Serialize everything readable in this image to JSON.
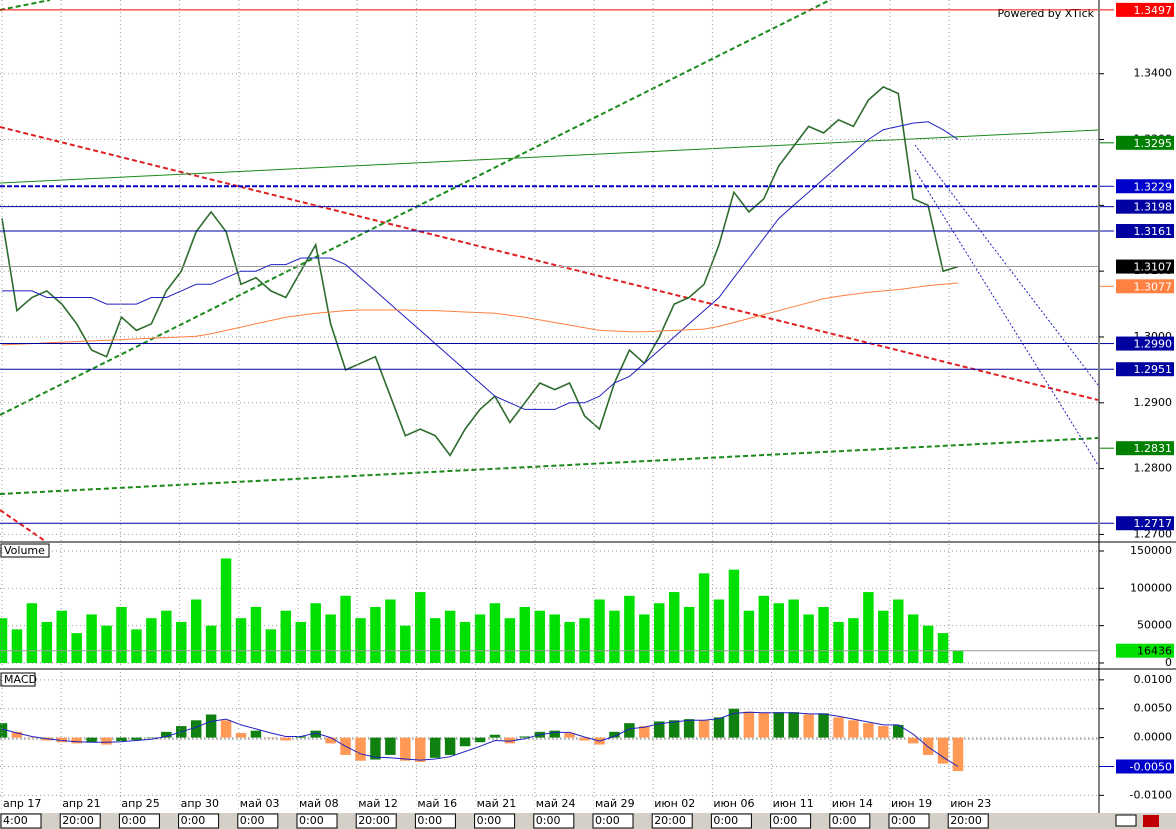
{
  "watermark": "Powered by XTick",
  "time_axis": {
    "dates": [
      "апр 17",
      "апр 21",
      "апр 25",
      "апр 30",
      "май 03",
      "май 08",
      "май 12",
      "май 16",
      "май 21",
      "май 24",
      "май 29",
      "июн 02",
      "июн 06",
      "июн 11",
      "июн 14",
      "июн 19",
      "июн 23"
    ],
    "times": [
      "4:00",
      "20:00",
      "0:00",
      "0:00",
      "0:00",
      "0:00",
      "20:00",
      "0:00",
      "0:00",
      "0:00",
      "0:00",
      "20:00",
      "0:00",
      "0:00",
      "0:00",
      "0:00",
      "20:00"
    ]
  },
  "chart_data": [
    {
      "type": "line",
      "ylim": [
        1.269,
        1.3512
      ],
      "yticks": [
        {
          "value": 1.27,
          "label": "1.2700"
        },
        {
          "value": 1.28,
          "label": "1.2800"
        },
        {
          "value": 1.29,
          "label": "1.2900"
        },
        {
          "value": 1.3,
          "label": "1.3000"
        },
        {
          "value": 1.31,
          "label": "1.3100"
        },
        {
          "value": 1.32,
          "label": "1.3200"
        },
        {
          "value": 1.33,
          "label": "1.3300"
        },
        {
          "value": 1.34,
          "label": "1.3400"
        }
      ],
      "grid": true,
      "series": [
        {
          "style": "line",
          "color": "#2e6b2e",
          "last_badge": true,
          "badge_color": "#000000",
          "values": [
            1.318,
            1.304,
            1.306,
            1.307,
            1.305,
            1.302,
            1.298,
            1.297,
            1.303,
            1.301,
            1.302,
            1.307,
            1.31,
            1.316,
            1.319,
            1.316,
            1.308,
            1.309,
            1.307,
            1.306,
            1.31,
            1.314,
            1.302,
            1.295,
            1.296,
            1.297,
            1.291,
            1.285,
            1.286,
            1.285,
            1.282,
            1.286,
            1.289,
            1.291,
            1.287,
            1.29,
            1.293,
            1.292,
            1.293,
            1.288,
            1.286,
            1.293,
            1.298,
            1.296,
            1.3,
            1.305,
            1.306,
            1.308,
            1.314,
            1.322,
            1.319,
            1.321,
            1.326,
            1.329,
            1.332,
            1.331,
            1.333,
            1.332,
            1.336,
            1.338,
            1.337,
            1.321,
            1.32,
            1.31,
            1.3107
          ]
        },
        {
          "style": "line",
          "color": "#2020c0",
          "values": [
            1.307,
            1.307,
            1.307,
            1.306,
            1.306,
            1.306,
            1.306,
            1.305,
            1.305,
            1.305,
            1.306,
            1.306,
            1.307,
            1.308,
            1.308,
            1.309,
            1.31,
            1.31,
            1.311,
            1.311,
            1.312,
            1.312,
            1.312,
            1.311,
            1.309,
            1.307,
            1.305,
            1.303,
            1.301,
            1.299,
            1.297,
            1.295,
            1.293,
            1.291,
            1.29,
            1.289,
            1.289,
            1.289,
            1.29,
            1.29,
            1.291,
            1.293,
            1.294,
            1.296,
            1.298,
            1.3,
            1.302,
            1.304,
            1.306,
            1.309,
            1.312,
            1.315,
            1.318,
            1.32,
            1.322,
            1.324,
            1.326,
            1.328,
            1.33,
            1.3315,
            1.332,
            1.3325,
            1.3327,
            1.3315,
            1.33
          ]
        },
        {
          "style": "line",
          "color": "#ff8040",
          "values": [
            1.2988,
            1.2989,
            1.299,
            1.2991,
            1.2992,
            1.2993,
            1.2994,
            1.2995,
            1.2996,
            1.2997,
            1.2998,
            1.2999,
            1.3,
            1.3001,
            1.3005,
            1.301,
            1.3015,
            1.302,
            1.3025,
            1.303,
            1.3033,
            1.3036,
            1.3038,
            1.304,
            1.3041,
            1.3041,
            1.3041,
            1.3041,
            1.304,
            1.304,
            1.3039,
            1.3038,
            1.3037,
            1.3036,
            1.3033,
            1.303,
            1.3026,
            1.3022,
            1.3018,
            1.3014,
            1.301,
            1.3009,
            1.3008,
            1.3008,
            1.3009,
            1.301,
            1.3011,
            1.3012,
            1.3016,
            1.3022,
            1.3028,
            1.3034,
            1.304,
            1.3046,
            1.3052,
            1.3058,
            1.3062,
            1.3065,
            1.3068,
            1.307,
            1.3072,
            1.3075,
            1.3078,
            1.308,
            1.3082
          ]
        }
      ],
      "levels": [
        {
          "value": 1.3497,
          "color": "#ff0000",
          "line_style": "solid"
        },
        {
          "value": 1.3295,
          "color": "#008000",
          "line_style": "none"
        },
        {
          "value": 1.3229,
          "color": "#0000cc",
          "line_style": "dashed"
        },
        {
          "value": 1.3198,
          "color": "#0000a0",
          "line_style": "solid"
        },
        {
          "value": 1.3161,
          "color": "#0000a0",
          "line_style": "solid"
        },
        {
          "value": 1.3077,
          "color": "#ff8040",
          "line_style": "none"
        },
        {
          "value": 1.299,
          "label": "1.2990",
          "color": "#0000a0",
          "line_style": "solid"
        },
        {
          "value": 1.2951,
          "color": "#0000a0",
          "line_style": "solid"
        },
        {
          "value": 1.2831,
          "color": "#008000",
          "line_style": "none"
        },
        {
          "value": 1.2717,
          "color": "#0000a0",
          "line_style": "solid"
        }
      ]
    },
    {
      "type": "bar",
      "title": "Volume",
      "ylim": [
        -5400,
        160700
      ],
      "yticks": [
        0,
        50000,
        100000,
        150000
      ],
      "grid": true,
      "series": [
        {
          "style": "bar",
          "color": "#00e000",
          "last_badge": true,
          "badge_color": "#00e000",
          "values": [
            60000,
            45000,
            80000,
            55000,
            70000,
            40000,
            65000,
            50000,
            75000,
            45000,
            60000,
            70000,
            55000,
            85000,
            50000,
            140000,
            60000,
            75000,
            45000,
            70000,
            55000,
            80000,
            65000,
            90000,
            60000,
            75000,
            85000,
            50000,
            95000,
            60000,
            70000,
            55000,
            65000,
            80000,
            60000,
            75000,
            70000,
            65000,
            55000,
            60000,
            85000,
            70000,
            90000,
            65000,
            80000,
            95000,
            75000,
            120000,
            85000,
            125000,
            70000,
            90000,
            80000,
            85000,
            65000,
            75000,
            55000,
            60000,
            95000,
            70000,
            85000,
            65000,
            50000,
            40000,
            16436
          ]
        }
      ]
    },
    {
      "type": "bar",
      "title": "MACD",
      "ylim": [
        -0.01288,
        0.01136
      ],
      "yticks": [
        {
          "value": -0.01,
          "label": "-0.0100"
        },
        {
          "value": -0.005,
          "label": "-0.0050"
        },
        {
          "value": 0,
          "label": "0.0000"
        },
        {
          "value": 0.005,
          "label": "0.0050"
        },
        {
          "value": 0.01,
          "label": "0.0100"
        }
      ],
      "grid": true,
      "series": [
        {
          "style": "bar",
          "color": "#108010",
          "color_down": "#ff9955",
          "values": [
            0.0025,
            0.001,
            0,
            -0.0005,
            -0.0008,
            -0.001,
            -0.0008,
            -0.0012,
            -0.0006,
            -0.0004,
            0,
            0.001,
            0.002,
            0.003,
            0.004,
            0.003,
            0.0008,
            0.0012,
            0,
            -0.0005,
            0.0002,
            0.0012,
            -0.001,
            -0.003,
            -0.004,
            -0.0038,
            -0.003,
            -0.004,
            -0.0042,
            -0.0035,
            -0.003,
            -0.0015,
            -0.0008,
            0.0005,
            -0.001,
            0.0002,
            0.001,
            0.0012,
            0.0008,
            -0.0005,
            -0.0012,
            0.001,
            0.0025,
            0.002,
            0.0028,
            0.003,
            0.0032,
            0.003,
            0.0035,
            0.005,
            0.0045,
            0.0043,
            0.0044,
            0.0044,
            0.004,
            0.0042,
            0.0035,
            0.003,
            0.0025,
            0.002,
            0.0022,
            -0.001,
            -0.003,
            -0.0045,
            -0.0058
          ]
        },
        {
          "style": "line",
          "color": "#2020c0",
          "values": [
            0.0015,
            0.0008,
            0.0002,
            -0.0002,
            -0.0005,
            -0.0007,
            -0.0008,
            -0.0008,
            -0.0007,
            -0.0005,
            -0.0003,
            0.0002,
            0.001,
            0.0018,
            0.0028,
            0.0032,
            0.0022,
            0.0015,
            0.0008,
            0.0002,
            0.0002,
            0.0008,
            0,
            -0.0015,
            -0.0028,
            -0.0034,
            -0.0035,
            -0.0037,
            -0.0039,
            -0.0037,
            -0.0033,
            -0.0024,
            -0.0015,
            -0.0005,
            -0.0006,
            -0.0002,
            0.0005,
            0.0009,
            0.0009,
            0.0001,
            -0.0006,
            0.0002,
            0.0015,
            0.0018,
            0.0024,
            0.0027,
            0.003,
            0.003,
            0.0033,
            0.0042,
            0.0044,
            0.0043,
            0.0043,
            0.0043,
            0.0041,
            0.0041,
            0.0037,
            0.0032,
            0.0027,
            0.0022,
            0.0022,
            0.0006,
            -0.0016,
            -0.0034,
            -0.005
          ]
        }
      ],
      "last_label": {
        "value": -0.005,
        "label": "-0.0050",
        "color": "#0000cc"
      }
    }
  ]
}
